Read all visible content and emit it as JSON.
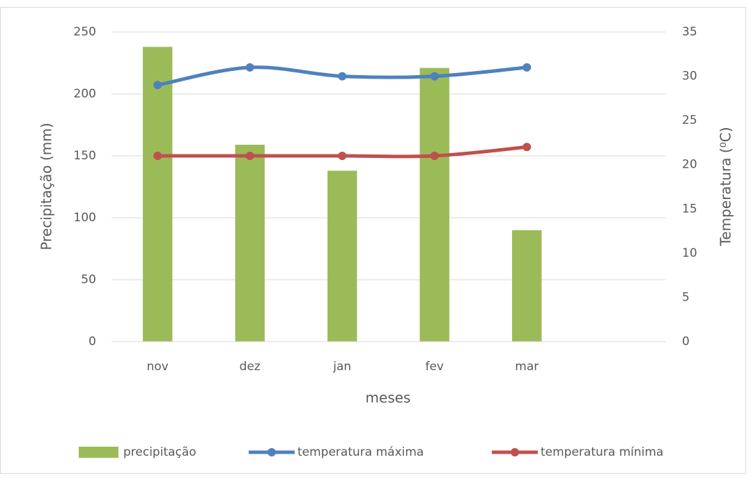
{
  "chart_data": {
    "type": "combo",
    "x_label": "meses",
    "y_label": "Precipitação (mm)",
    "y2_label": "Temperatura (⁰C)",
    "categories": [
      "nov",
      "dez",
      "jan",
      "fev",
      "mar",
      null
    ],
    "series": [
      {
        "name": "precipitação",
        "type": "bar",
        "color": "#9bbb59",
        "values": [
          238,
          159,
          138,
          221,
          90,
          null
        ]
      },
      {
        "name": "temperatura máxima",
        "type": "line",
        "axis": "y2",
        "color": "#4f81bd",
        "values": [
          29,
          31,
          30,
          30,
          31,
          null
        ]
      },
      {
        "name": "temperatura mínima",
        "type": "line",
        "axis": "y2",
        "color": "#c0504d",
        "values": [
          21,
          21,
          21,
          21,
          22,
          null
        ]
      }
    ],
    "ylim": [
      0,
      250
    ],
    "yticks": [
      0,
      50,
      100,
      150,
      200,
      250
    ],
    "y2lim": [
      0,
      35
    ],
    "y2ticks": [
      0,
      5,
      10,
      15,
      20,
      25,
      30,
      35
    ],
    "grid": true,
    "legend": "bottom"
  }
}
